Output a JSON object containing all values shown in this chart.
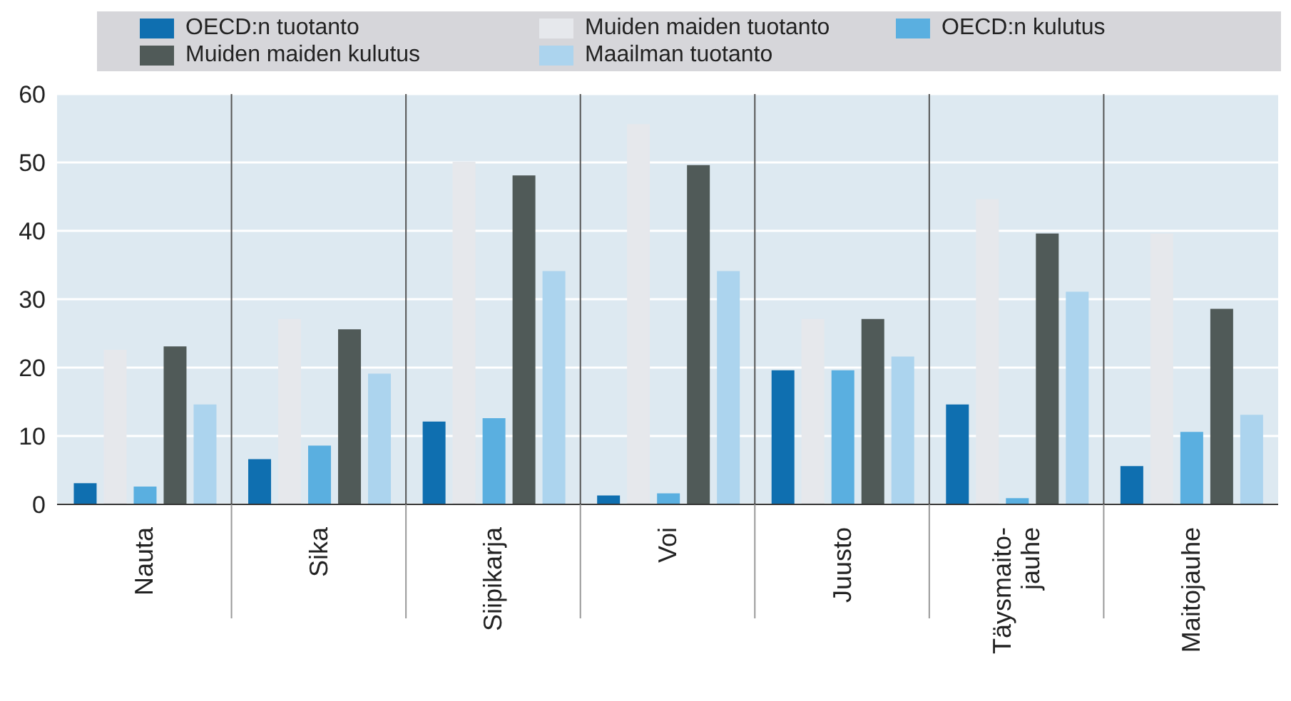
{
  "chart_data": {
    "type": "bar",
    "categories": [
      "Nauta",
      "Sika",
      "Siipikarja",
      "Voi",
      "Juusto",
      "Täysmaito-\njauhe",
      "Maitojauhe"
    ],
    "series": [
      {
        "name": "OECD:n tuotanto",
        "color": "#0f6fb0",
        "values": [
          3,
          6.5,
          12,
          1.2,
          19.5,
          14.5,
          5.5
        ]
      },
      {
        "name": "Muiden maiden tuotanto",
        "color": "#e6e8ec",
        "values": [
          22.5,
          27,
          50,
          55.5,
          27,
          44.5,
          39.5
        ]
      },
      {
        "name": "OECD:n kulutus",
        "color": "#5aafe0",
        "values": [
          2.5,
          8.5,
          12.5,
          1.5,
          19.5,
          0.8,
          10.5
        ]
      },
      {
        "name": "Muiden maiden kulutus",
        "color": "#505a58",
        "values": [
          23,
          25.5,
          48,
          49.5,
          27,
          39.5,
          28.5
        ]
      },
      {
        "name": "Maailman tuotanto",
        "color": "#acd4ee",
        "values": [
          14.5,
          19,
          34,
          34,
          21.5,
          31,
          13
        ]
      }
    ],
    "ylim": [
      0,
      60
    ],
    "yticks": [
      0,
      10,
      20,
      30,
      40,
      50,
      60
    ],
    "grid": true,
    "legend": "top"
  }
}
